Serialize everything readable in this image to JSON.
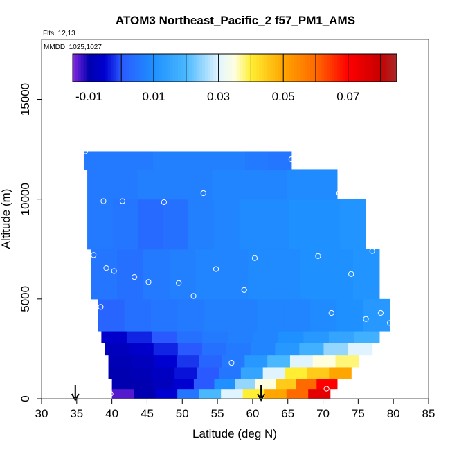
{
  "chart_data": {
    "type": "heatmap",
    "title": "ATOM3 Northeast_Pacific_2 f57_PM1_AMS",
    "subtitle_lines": [
      "Flts: 12,13",
      "MMDD: 1025,1027"
    ],
    "xlabel": "Latitude (deg N)",
    "ylabel": "Altitude (m)",
    "xlim": [
      30,
      85
    ],
    "ylim": [
      0,
      18000
    ],
    "x_ticks": [
      "30",
      "35",
      "40",
      "45",
      "50",
      "55",
      "60",
      "65",
      "70",
      "75",
      "80",
      "85"
    ],
    "x_tick_values": [
      30,
      35,
      40,
      45,
      50,
      55,
      60,
      65,
      70,
      75,
      80,
      85
    ],
    "y_ticks": [
      "0",
      "5000",
      "10000",
      "15000"
    ],
    "y_tick_values": [
      0,
      5000,
      10000,
      15000
    ],
    "colorbar": {
      "range": [
        -0.015,
        0.085
      ],
      "tick_labels": [
        "-0.01",
        "0.01",
        "0.03",
        "0.05",
        "0.07"
      ],
      "tick_values": [
        -0.01,
        0.01,
        0.03,
        0.05,
        0.07
      ],
      "stops": [
        {
          "v": -0.015,
          "color": "#8b2be2"
        },
        {
          "v": -0.01,
          "color": "#0000b0"
        },
        {
          "v": -0.005,
          "color": "#0000d0"
        },
        {
          "v": 0.0,
          "color": "#2a5aff"
        },
        {
          "v": 0.01,
          "color": "#1e90ff"
        },
        {
          "v": 0.02,
          "color": "#4ab8ff"
        },
        {
          "v": 0.03,
          "color": "#e0f4ff"
        },
        {
          "v": 0.035,
          "color": "#ffffe0"
        },
        {
          "v": 0.04,
          "color": "#ffee33"
        },
        {
          "v": 0.05,
          "color": "#ffa500"
        },
        {
          "v": 0.06,
          "color": "#ff6a00"
        },
        {
          "v": 0.07,
          "color": "#ff0000"
        },
        {
          "v": 0.08,
          "color": "#c80000"
        },
        {
          "v": 0.085,
          "color": "#a52a2a"
        }
      ]
    },
    "profile_bands": [
      {
        "alt_min": 0,
        "alt_max": 500,
        "lat_min": 40,
        "lat_max": 71,
        "values": [
          -0.013,
          -0.01,
          -0.005,
          0.005,
          0.02,
          0.03,
          0.04,
          0.05,
          0.06,
          0.075
        ]
      },
      {
        "alt_min": 500,
        "alt_max": 1000,
        "lat_min": 40,
        "lat_max": 72,
        "values": [
          -0.01,
          -0.01,
          -0.008,
          -0.005,
          0.0,
          0.01,
          0.025,
          0.035,
          0.045,
          0.06,
          0.07
        ]
      },
      {
        "alt_min": 1000,
        "alt_max": 1600,
        "lat_min": 39.5,
        "lat_max": 74,
        "values": [
          -0.01,
          -0.009,
          -0.007,
          -0.004,
          0.0,
          0.005,
          0.015,
          0.03,
          0.04,
          0.045,
          0.05
        ]
      },
      {
        "alt_min": 1600,
        "alt_max": 2200,
        "lat_min": 39.5,
        "lat_max": 75,
        "values": [
          -0.009,
          -0.008,
          -0.005,
          -0.002,
          0.002,
          0.006,
          0.012,
          0.02,
          0.03,
          0.035,
          0.038
        ]
      },
      {
        "alt_min": 2200,
        "alt_max": 2800,
        "lat_min": 39,
        "lat_max": 77,
        "values": [
          -0.008,
          -0.006,
          -0.003,
          0.0,
          0.004,
          0.006,
          0.008,
          0.012,
          0.018,
          0.025,
          0.03
        ]
      },
      {
        "alt_min": 2800,
        "alt_max": 3400,
        "lat_min": 38.5,
        "lat_max": 78,
        "values": [
          -0.006,
          -0.003,
          0.0,
          0.004,
          0.006,
          0.007,
          0.008,
          0.01,
          0.012,
          0.015,
          0.018
        ]
      },
      {
        "alt_min": 3400,
        "alt_max": 5000,
        "lat_min": 38,
        "lat_max": 79.5,
        "values": [
          0.002,
          0.004,
          0.005,
          0.006,
          0.007,
          0.007,
          0.008,
          0.008,
          0.009,
          0.01,
          0.012
        ]
      },
      {
        "alt_min": 5000,
        "alt_max": 7500,
        "lat_min": 37,
        "lat_max": 78,
        "values": [
          0.005,
          0.004,
          0.006,
          0.007,
          0.008,
          0.008,
          0.009,
          0.009,
          0.01,
          0.01,
          0.011
        ]
      },
      {
        "alt_min": 7500,
        "alt_max": 10000,
        "lat_min": 36.5,
        "lat_max": 76,
        "values": [
          0.006,
          0.005,
          0.003,
          0.004,
          0.007,
          0.008,
          0.009,
          0.009,
          0.01,
          0.01,
          0.011
        ]
      },
      {
        "alt_min": 10000,
        "alt_max": 11500,
        "lat_min": 36.5,
        "lat_max": 72,
        "values": [
          0.006,
          0.006,
          0.007,
          0.007,
          0.007,
          0.008,
          0.008,
          0.008,
          0.009,
          0.009
        ]
      },
      {
        "alt_min": 11500,
        "alt_max": 12400,
        "lat_min": 36,
        "lat_max": 65.5,
        "values": [
          0.006,
          0.006,
          0.006,
          0.007,
          0.007,
          0.007,
          0.007,
          0.006,
          0.005
        ]
      }
    ],
    "points": [
      {
        "lat": 36.2,
        "alt": 12400
      },
      {
        "lat": 65.5,
        "alt": 12000
      },
      {
        "lat": 38.8,
        "alt": 9900
      },
      {
        "lat": 41.5,
        "alt": 9900
      },
      {
        "lat": 47.4,
        "alt": 9850
      },
      {
        "lat": 53.0,
        "alt": 10300
      },
      {
        "lat": 72.3,
        "alt": 10300
      },
      {
        "lat": 77.0,
        "alt": 7400
      },
      {
        "lat": 37.4,
        "alt": 7200
      },
      {
        "lat": 60.3,
        "alt": 7050
      },
      {
        "lat": 69.3,
        "alt": 7150
      },
      {
        "lat": 39.2,
        "alt": 6550
      },
      {
        "lat": 40.3,
        "alt": 6400
      },
      {
        "lat": 43.2,
        "alt": 6100
      },
      {
        "lat": 45.2,
        "alt": 5850
      },
      {
        "lat": 49.5,
        "alt": 5800
      },
      {
        "lat": 54.8,
        "alt": 6500
      },
      {
        "lat": 74.0,
        "alt": 6250
      },
      {
        "lat": 51.6,
        "alt": 5150
      },
      {
        "lat": 58.8,
        "alt": 5450
      },
      {
        "lat": 38.4,
        "alt": 4600
      },
      {
        "lat": 71.2,
        "alt": 4300
      },
      {
        "lat": 76.1,
        "alt": 4000
      },
      {
        "lat": 78.2,
        "alt": 4300
      },
      {
        "lat": 79.5,
        "alt": 3800
      },
      {
        "lat": 57.0,
        "alt": 1800
      },
      {
        "lat": 39.8,
        "alt": 250
      },
      {
        "lat": 70.5,
        "alt": 500
      }
    ],
    "arrows_lat": [
      34.8,
      61.2
    ]
  }
}
